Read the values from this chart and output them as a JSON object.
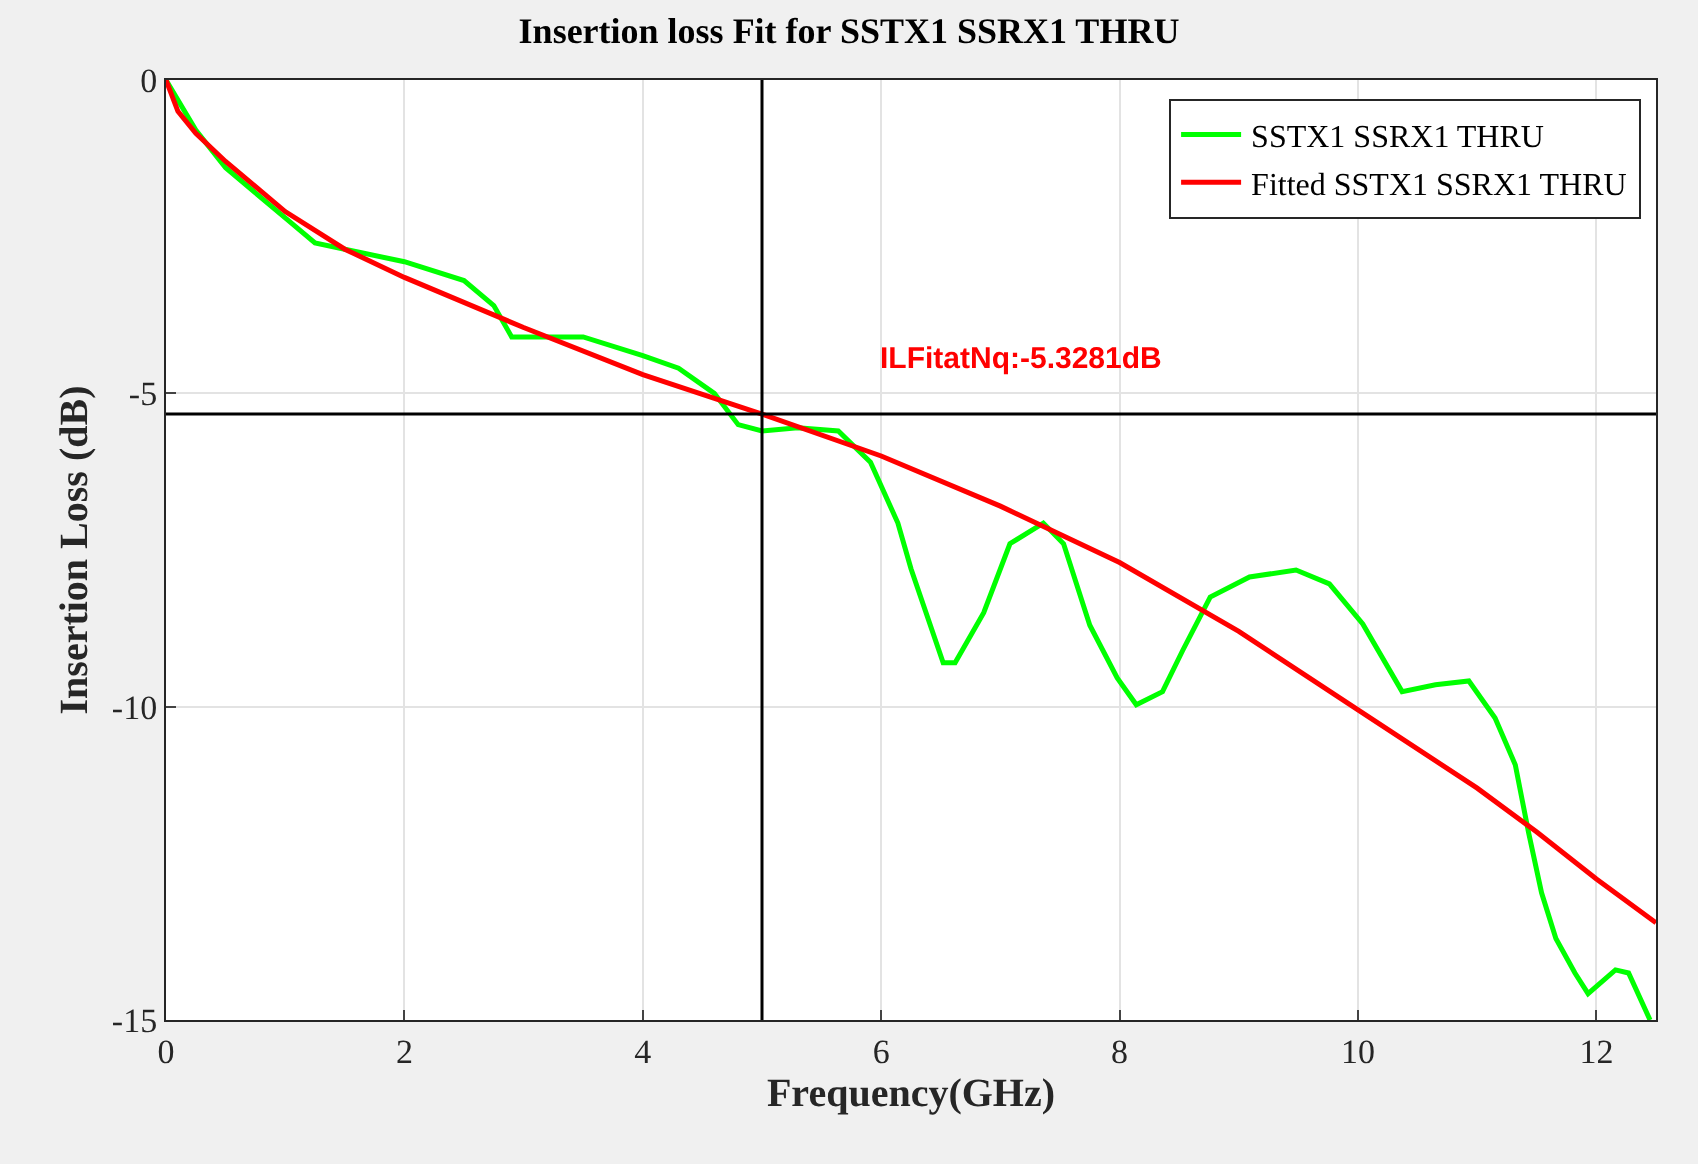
{
  "chart_data": {
    "type": "line",
    "title": "Insertion loss Fit for SSTX1 SSRX1 THRU",
    "xlabel": "Frequency(GHz)",
    "ylabel": "Insertion Loss (dB)",
    "series": [
      {
        "name": "SSTX1 SSRX1 THRU",
        "color": "#00ff00",
        "x": [
          0,
          0.25,
          0.5,
          0.75,
          1,
          1.25,
          1.5,
          2,
          2.5,
          2.75,
          2.9,
          3.2,
          3.5,
          4,
          4.3,
          4.6,
          4.8,
          5,
          5.3,
          5.64,
          5.91,
          6.14,
          6.25,
          6.52,
          6.62,
          6.86,
          7.08,
          7.36,
          7.53,
          7.75,
          7.98,
          8.14,
          8.36,
          8.53,
          8.76,
          9.09,
          9.48,
          9.76,
          10.04,
          10.37,
          10.65,
          10.93,
          11.15,
          11.32,
          11.43,
          11.54,
          11.66,
          11.82,
          11.93,
          12.16,
          12.27,
          12.45
        ],
        "values": [
          0,
          -0.8,
          -1.4,
          -1.8,
          -2.2,
          -2.6,
          -2.7,
          -2.9,
          -3.2,
          -3.6,
          -4.1,
          -4.1,
          -4.1,
          -4.4,
          -4.6,
          -5.0,
          -5.5,
          -5.6,
          -5.55,
          -5.6,
          -6.1,
          -7.07,
          -7.8,
          -9.3,
          -9.3,
          -8.5,
          -7.4,
          -7.07,
          -7.4,
          -8.7,
          -9.54,
          -9.97,
          -9.76,
          -9.1,
          -8.25,
          -7.93,
          -7.82,
          -8.04,
          -8.68,
          -9.76,
          -9.65,
          -9.59,
          -10.18,
          -10.93,
          -12.0,
          -12.97,
          -13.7,
          -14.25,
          -14.58,
          -14.2,
          -14.25,
          -15.0
        ]
      },
      {
        "name": "Fitted SSTX1 SSRX1 THRU",
        "color": "#ff0000",
        "x": [
          0,
          0.1,
          0.25,
          0.5,
          1,
          1.5,
          2,
          3,
          4,
          5,
          6,
          7,
          8,
          9,
          10,
          11,
          11.5,
          12,
          12.5
        ],
        "values": [
          0,
          -0.5,
          -0.85,
          -1.3,
          -2.1,
          -2.7,
          -3.15,
          -3.95,
          -4.7,
          -5.33,
          -6.0,
          -6.8,
          -7.7,
          -8.8,
          -10.05,
          -11.3,
          -12.0,
          -12.75,
          -13.45
        ]
      }
    ],
    "xlim": [
      0,
      12.5
    ],
    "xticks": [
      0,
      2,
      4,
      6,
      8,
      10,
      12
    ],
    "ylim": [
      -15,
      0
    ],
    "yticks": [
      -15,
      -10,
      -5,
      0
    ],
    "ref_lines": [
      {
        "axis": "x",
        "value": 5,
        "color": "#000000"
      },
      {
        "axis": "y",
        "value": -5.3281,
        "color": "#000000"
      }
    ],
    "annotations": [
      "ILFitatNq:-5.3281dB"
    ],
    "grid": true,
    "legend": "top right",
    "marker": "none",
    "line_style": "solid"
  }
}
